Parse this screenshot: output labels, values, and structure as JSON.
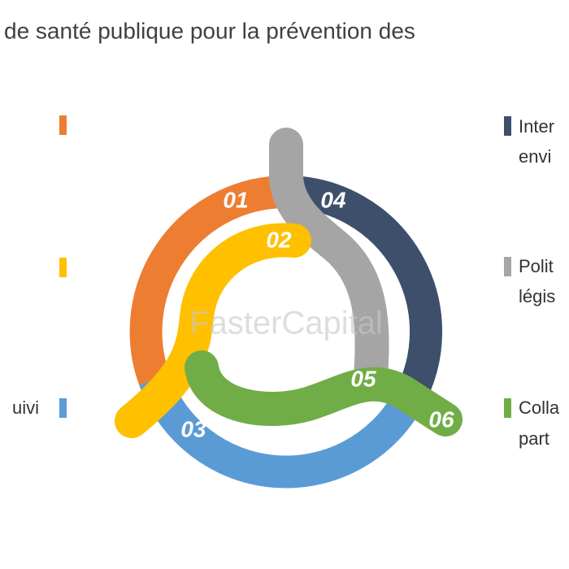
{
  "title": "de santé publique pour la prévention des",
  "steps": [
    "01",
    "02",
    "03",
    "04",
    "05",
    "06"
  ],
  "right_labels": [
    [
      "Inter",
      "envi"
    ],
    [
      "Polit",
      "légis"
    ],
    [
      "Colla",
      "part"
    ]
  ],
  "left_labels": [
    "uivi"
  ],
  "watermark": "FasterCapital"
}
